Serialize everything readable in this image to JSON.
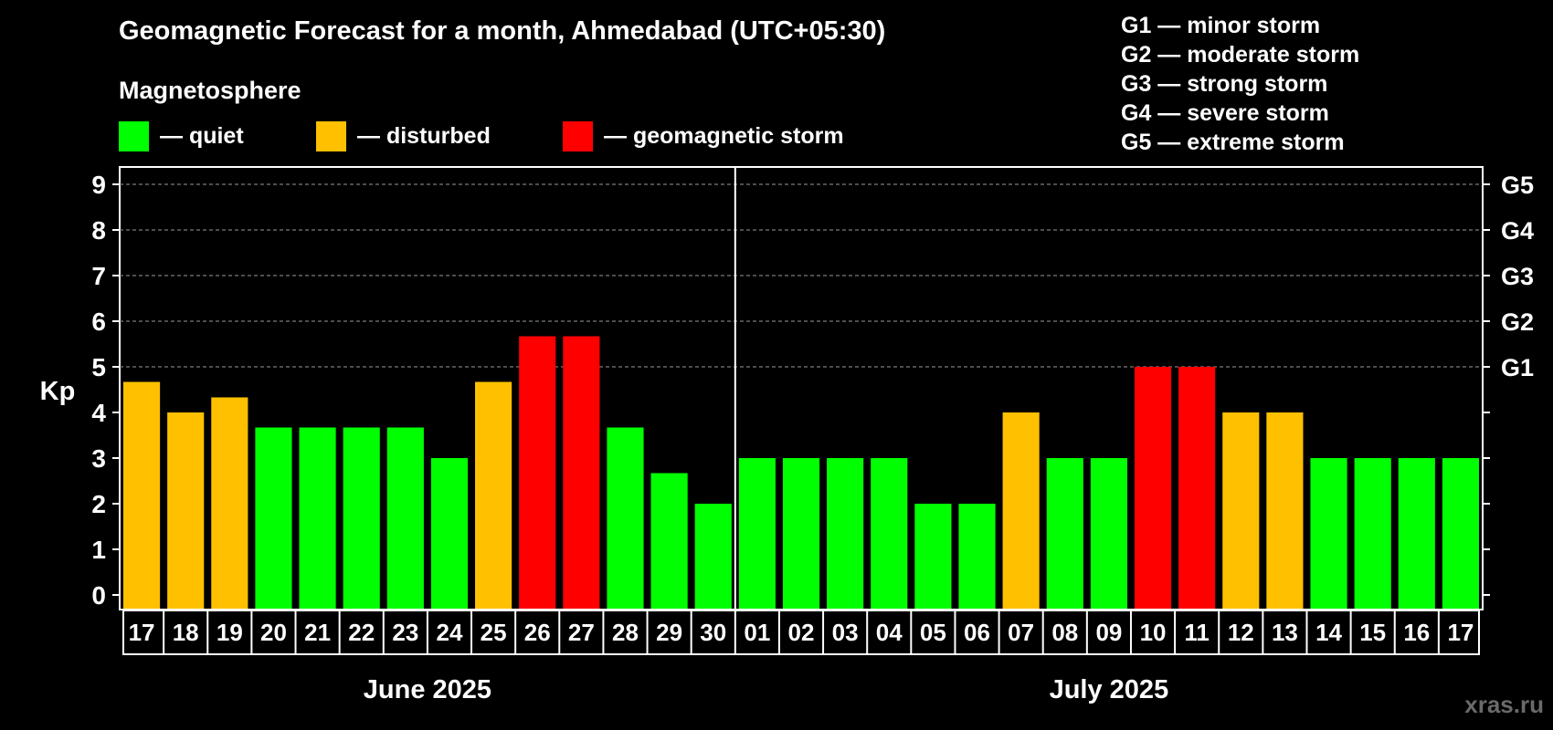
{
  "title": "Geomagnetic Forecast for a month, Ahmedabad (UTC+05:30)",
  "magnetosphere_label": "Magnetosphere",
  "legend": [
    {
      "label": "— quiet",
      "color": "#00ff00"
    },
    {
      "label": "— disturbed",
      "color": "#ffc000"
    },
    {
      "label": "— geomagnetic storm",
      "color": "#ff0000"
    }
  ],
  "storm_scale": [
    "G1 — minor storm",
    "G2 — moderate storm",
    "G3 — strong storm",
    "G4 — severe storm",
    "G5 — extreme storm"
  ],
  "watermark": "xras.ru",
  "chart_data": {
    "type": "bar",
    "ylabel": "Kp",
    "ylim": [
      0,
      9
    ],
    "y_ticks": [
      0,
      1,
      2,
      3,
      4,
      5,
      6,
      7,
      8,
      9
    ],
    "right_labels": [
      {
        "value": 5,
        "label": "G1"
      },
      {
        "value": 6,
        "label": "G2"
      },
      {
        "value": 7,
        "label": "G3"
      },
      {
        "value": 8,
        "label": "G4"
      },
      {
        "value": 9,
        "label": "G5"
      }
    ],
    "categories": [
      "17",
      "18",
      "19",
      "20",
      "21",
      "22",
      "23",
      "24",
      "25",
      "26",
      "27",
      "28",
      "29",
      "30",
      "01",
      "02",
      "03",
      "04",
      "05",
      "06",
      "07",
      "08",
      "09",
      "10",
      "11",
      "12",
      "13",
      "14",
      "15",
      "16",
      "17"
    ],
    "values": [
      4.67,
      4.0,
      4.33,
      3.67,
      3.67,
      3.67,
      3.67,
      3.0,
      4.67,
      5.67,
      5.67,
      3.67,
      2.67,
      2.0,
      3.0,
      3.0,
      3.0,
      3.0,
      2.0,
      2.0,
      4.0,
      3.0,
      3.0,
      5.0,
      5.0,
      4.0,
      4.0,
      3.0,
      3.0,
      3.0,
      3.0
    ],
    "status": [
      "disturbed",
      "disturbed",
      "disturbed",
      "quiet",
      "quiet",
      "quiet",
      "quiet",
      "quiet",
      "disturbed",
      "storm",
      "storm",
      "quiet",
      "quiet",
      "quiet",
      "quiet",
      "quiet",
      "quiet",
      "quiet",
      "quiet",
      "quiet",
      "disturbed",
      "quiet",
      "quiet",
      "storm",
      "storm",
      "disturbed",
      "disturbed",
      "quiet",
      "quiet",
      "quiet",
      "quiet"
    ],
    "status_colors": {
      "quiet": "#00ff00",
      "disturbed": "#ffc000",
      "storm": "#ff0000"
    },
    "months": [
      {
        "label": "June 2025",
        "start": 0,
        "end": 13
      },
      {
        "label": "July 2025",
        "start": 14,
        "end": 30
      }
    ],
    "month_divider_after_index": 13,
    "grid": "dashed at integer Kp levels 5-9"
  }
}
